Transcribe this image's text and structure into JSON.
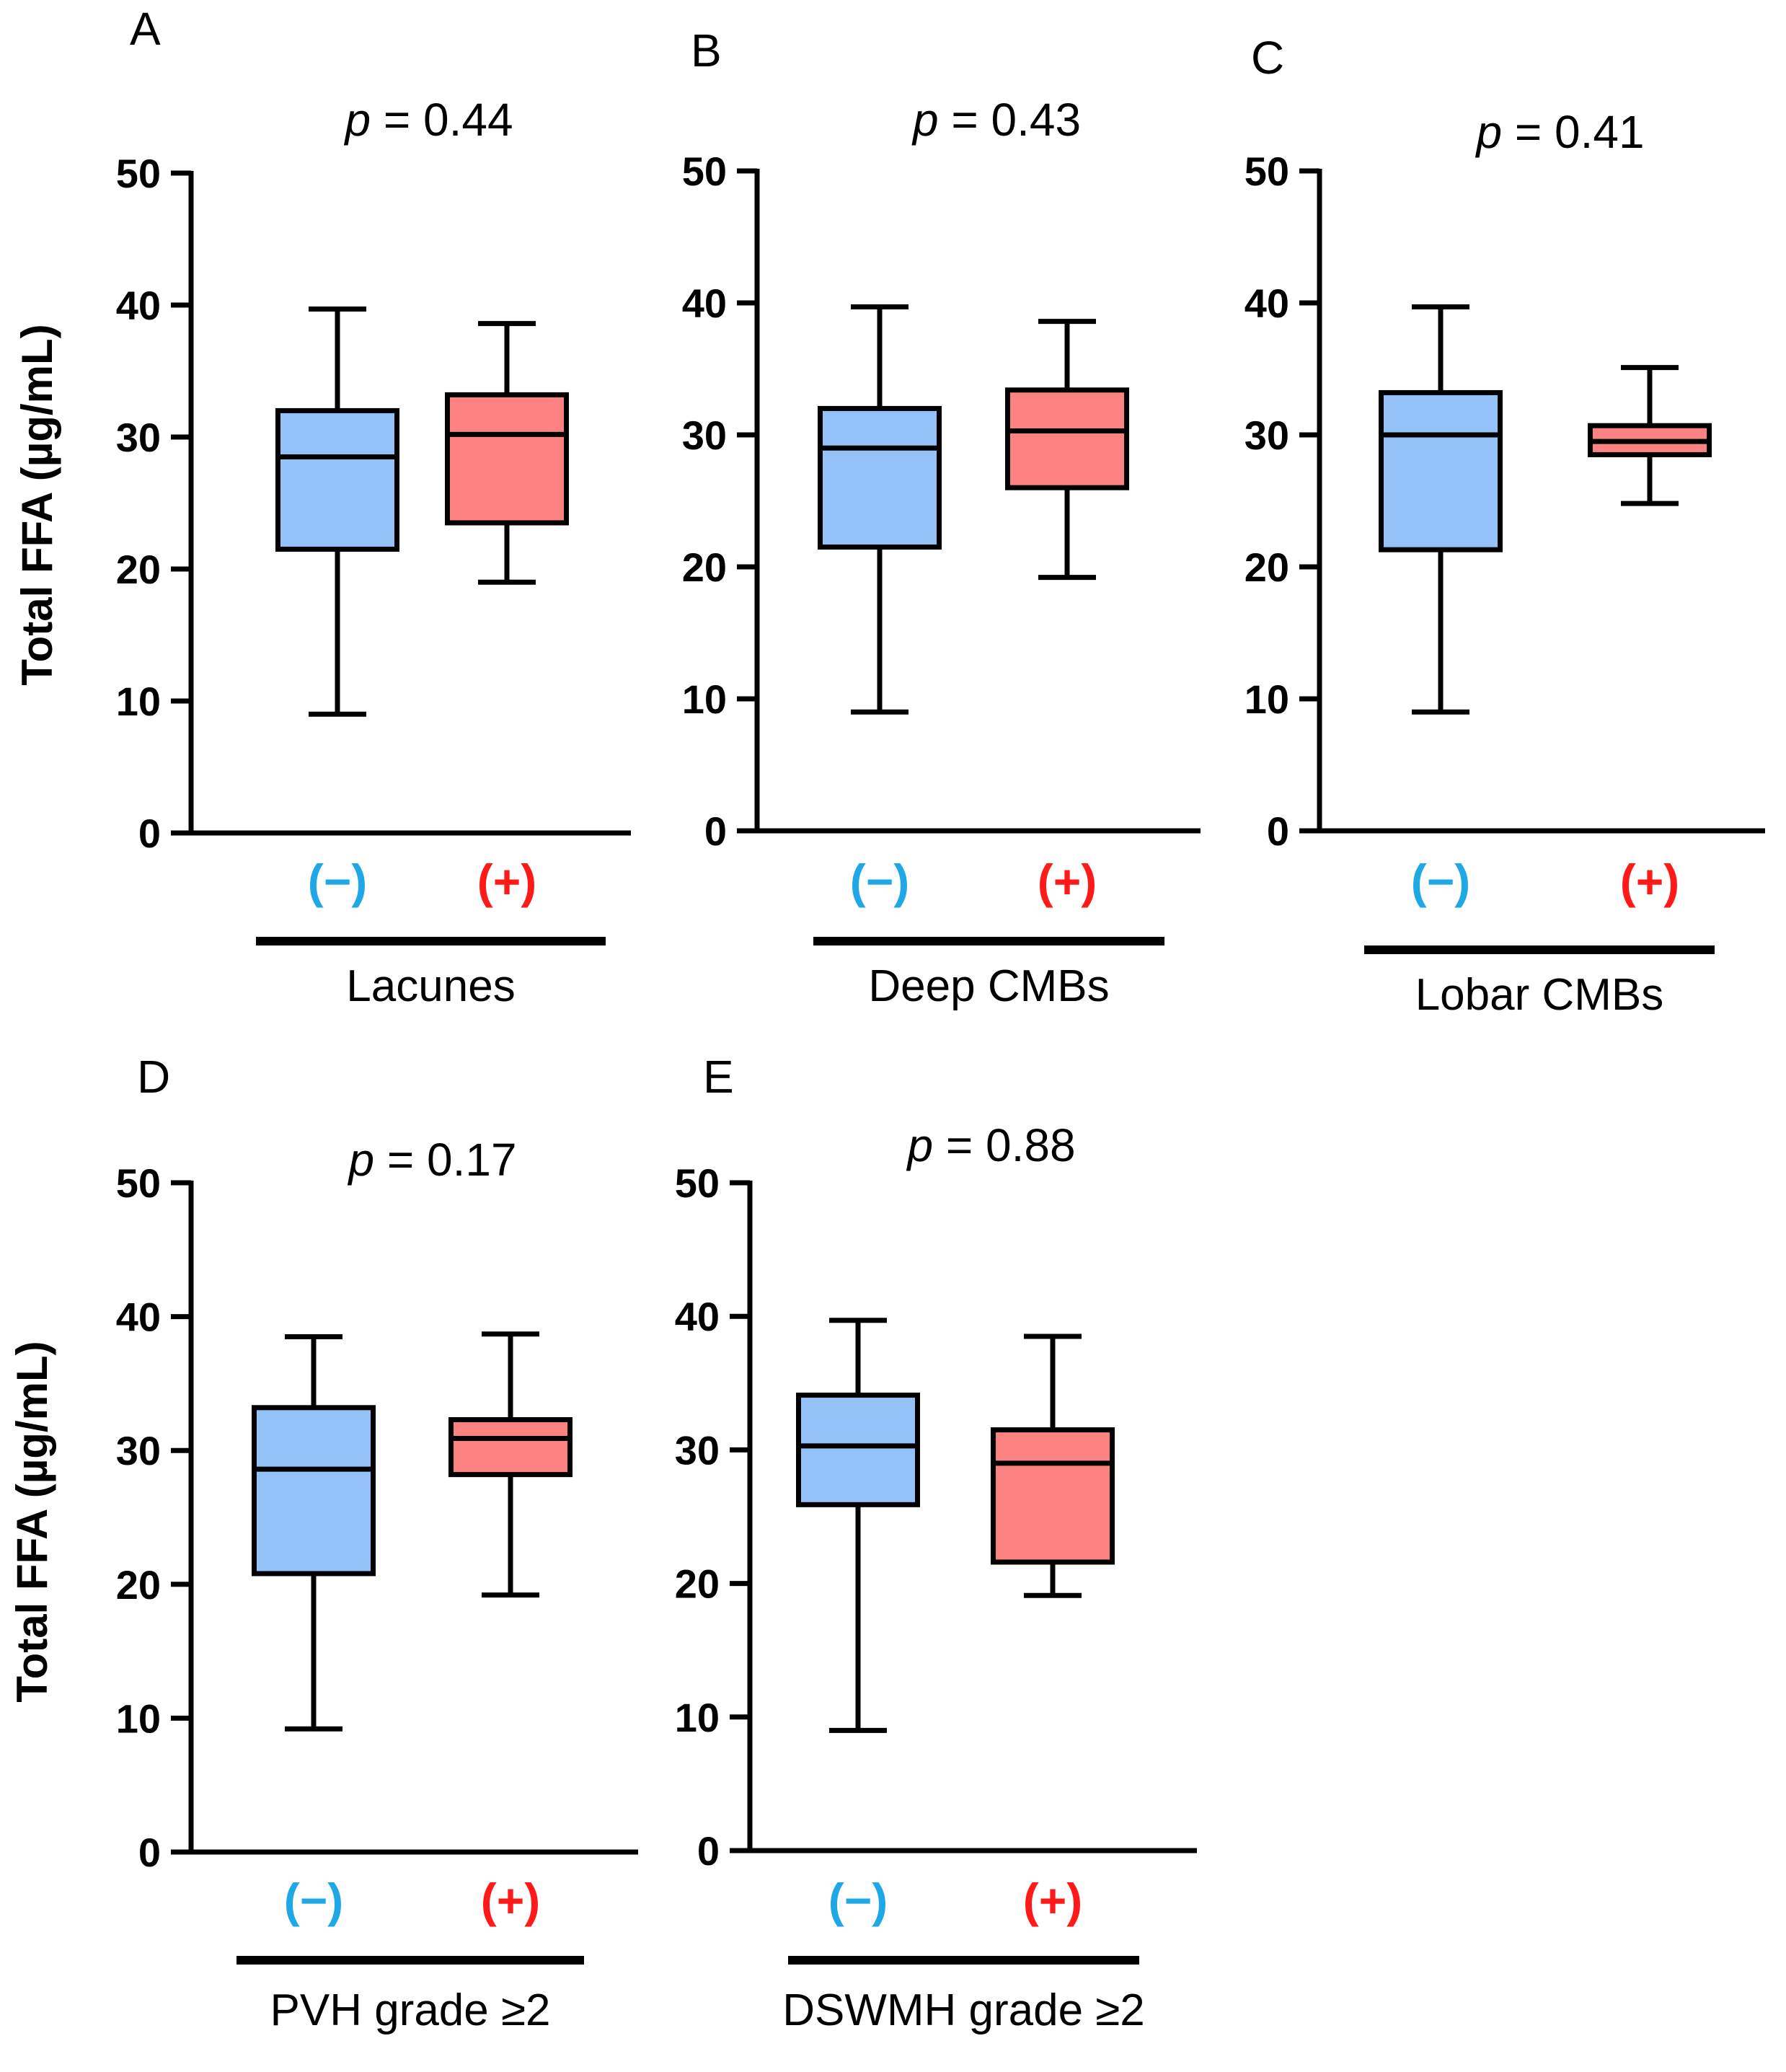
{
  "chart_data": [
    {
      "type": "box",
      "panel": "A",
      "p_label": "p",
      "p_rest": " = 0.44",
      "ylabel": "Total FFA (µg/mL)",
      "ylim": [
        0,
        50
      ],
      "yticks": [
        "0",
        "10",
        "20",
        "30",
        "40",
        "50"
      ],
      "xlabel": "Lacunes",
      "groups": [
        {
          "label": "(−)",
          "color": "#94c1f7",
          "whisker_low": 9,
          "q1": 21.5,
          "median": 28.5,
          "q3": 32,
          "whisker_high": 39.7
        },
        {
          "label": "(+)",
          "color": "#fc8282",
          "whisker_low": 19,
          "q1": 23.5,
          "median": 30.2,
          "q3": 33.2,
          "whisker_high": 38.6
        }
      ]
    },
    {
      "type": "box",
      "panel": "B",
      "p_label": "p",
      "p_rest": " = 0.43",
      "ylabel": "",
      "ylim": [
        0,
        50
      ],
      "yticks": [
        "0",
        "10",
        "20",
        "30",
        "40",
        "50"
      ],
      "xlabel": "Deep CMBs",
      "groups": [
        {
          "label": "(−)",
          "color": "#94c1f7",
          "whisker_low": 9,
          "q1": 21.5,
          "median": 29,
          "q3": 32,
          "whisker_high": 39.7
        },
        {
          "label": "(+)",
          "color": "#fc8282",
          "whisker_low": 19.2,
          "q1": 26,
          "median": 30.3,
          "q3": 33.4,
          "whisker_high": 38.6
        }
      ]
    },
    {
      "type": "box",
      "panel": "C",
      "p_label": "p",
      "p_rest": " = 0.41",
      "ylabel": "",
      "ylim": [
        0,
        50
      ],
      "yticks": [
        "0",
        "10",
        "20",
        "30",
        "40",
        "50"
      ],
      "xlabel": "Lobar CMBs",
      "groups": [
        {
          "label": "(−)",
          "color": "#94c1f7",
          "whisker_low": 9,
          "q1": 21.3,
          "median": 30,
          "q3": 33.2,
          "whisker_high": 39.7
        },
        {
          "label": "(+)",
          "color": "#fc8282",
          "whisker_low": 24.8,
          "q1": 28.5,
          "median": 29.5,
          "q3": 30.7,
          "whisker_high": 35.1
        }
      ]
    },
    {
      "type": "box",
      "panel": "D",
      "p_label": "p",
      "p_rest": " = 0.17",
      "ylabel": "Total FFA (µg/mL)",
      "ylim": [
        0,
        50
      ],
      "yticks": [
        "0",
        "10",
        "20",
        "30",
        "40",
        "50"
      ],
      "xlabel": "PVH grade ≥2",
      "groups": [
        {
          "label": "(−)",
          "color": "#94c1f7",
          "whisker_low": 9.2,
          "q1": 20.8,
          "median": 28.6,
          "q3": 33.2,
          "whisker_high": 38.5
        },
        {
          "label": "(+)",
          "color": "#fc8282",
          "whisker_low": 19.2,
          "q1": 28.2,
          "median": 30.9,
          "q3": 32.3,
          "whisker_high": 38.7
        }
      ]
    },
    {
      "type": "box",
      "panel": "E",
      "p_label": "p",
      "p_rest": " = 0.88",
      "ylabel": "",
      "ylim": [
        0,
        50
      ],
      "yticks": [
        "0",
        "10",
        "20",
        "30",
        "40",
        "50"
      ],
      "xlabel": "DSWMH grade ≥2",
      "groups": [
        {
          "label": "(−)",
          "color": "#94c1f7",
          "whisker_low": 9,
          "q1": 25.9,
          "median": 30.3,
          "q3": 34.1,
          "whisker_high": 39.7
        },
        {
          "label": "(+)",
          "color": "#fc8282",
          "whisker_low": 19.1,
          "q1": 21.6,
          "median": 29,
          "q3": 31.5,
          "whisker_high": 38.5
        }
      ]
    }
  ]
}
